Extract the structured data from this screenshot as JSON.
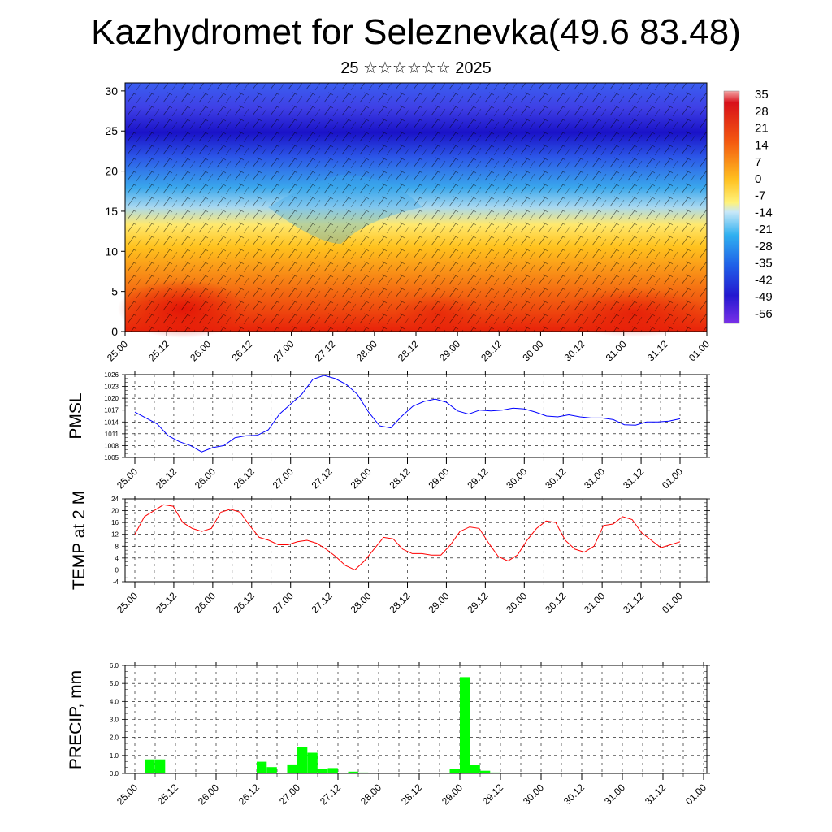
{
  "page": {
    "title": "Kazhydromet for Seleznevka(49.6 83.48)",
    "subtitle": "25 ☆☆☆☆☆☆ 2025"
  },
  "chart_data": [
    {
      "type": "heatmap",
      "name": "temperature-cross-section",
      "x_tick_labels": [
        "25.00",
        "25.12",
        "26.00",
        "26.12",
        "27.00",
        "27.12",
        "28.00",
        "28.12",
        "29.00",
        "29.12",
        "30.00",
        "30.12",
        "31.00",
        "31.12",
        "01.00"
      ],
      "y_tick_labels": [
        "0",
        "5",
        "10",
        "15",
        "20",
        "25",
        "30"
      ],
      "ylim": [
        0,
        31
      ],
      "colorbar_labels": [
        "35",
        "28",
        "21",
        "14",
        "7",
        "0",
        "-7",
        "-14",
        "-21",
        "-28",
        "-35",
        "-42",
        "-49",
        "-56"
      ],
      "colors": {
        "warm": "#e8200a",
        "mid": "#ffd21e",
        "cold": "#1a12c8"
      },
      "overlay": "wind barbs"
    },
    {
      "type": "line",
      "ylabel": "PMSL",
      "ylim": [
        1005,
        1026
      ],
      "y_tick_labels": [
        "1005",
        "1008",
        "1011",
        "1014",
        "1017",
        "1020",
        "1023",
        "1026"
      ],
      "x_tick_labels": [
        "25.00",
        "25.12",
        "26.00",
        "26.12",
        "27.00",
        "27.12",
        "28.00",
        "28.12",
        "29.00",
        "29.12",
        "30.00",
        "30.12",
        "31.00",
        "31.12",
        "01.00"
      ],
      "series": [
        {
          "color": "#0000ff",
          "values": [
            1016.5,
            1015,
            1013.5,
            1010.5,
            1009,
            1008,
            1006.4,
            1007.5,
            1008,
            1010,
            1010.5,
            1010.6,
            1012,
            1016,
            1018.5,
            1021,
            1024.8,
            1025.8,
            1025,
            1023.5,
            1021,
            1016.5,
            1013,
            1012.5,
            1015.5,
            1018,
            1019.2,
            1019.8,
            1019,
            1016.8,
            1016,
            1017,
            1016.8,
            1017,
            1017.5,
            1017.3,
            1016.5,
            1015.5,
            1015.3,
            1015.8,
            1015.3,
            1015,
            1015,
            1014.6,
            1013.3,
            1013.2,
            1014,
            1014,
            1014.2,
            1014.8
          ]
        }
      ]
    },
    {
      "type": "line",
      "ylabel": "TEMP at 2 M",
      "ylim": [
        -4,
        24
      ],
      "y_tick_labels": [
        "-4",
        "0",
        "4",
        "8",
        "12",
        "16",
        "20",
        "24"
      ],
      "x_tick_labels": [
        "25.00",
        "25.12",
        "26.00",
        "26.12",
        "27.00",
        "27.12",
        "28.00",
        "28.12",
        "29.00",
        "29.12",
        "30.00",
        "30.12",
        "31.00",
        "31.12",
        "01.00"
      ],
      "series": [
        {
          "color": "#ff0000",
          "values": [
            12,
            18,
            20,
            22,
            21.5,
            16,
            14,
            13,
            14,
            19.5,
            20.5,
            19.5,
            15,
            11,
            10,
            8.5,
            8.5,
            9.5,
            10,
            9,
            7,
            4.5,
            1.5,
            0,
            3,
            7,
            11,
            10.5,
            7,
            5.5,
            5.5,
            5,
            5,
            8.5,
            13,
            14.5,
            14,
            9,
            4.5,
            3,
            5,
            10,
            14,
            16.5,
            16,
            10,
            7,
            6,
            8,
            15,
            15.5,
            18,
            17,
            12.5,
            10,
            7.5,
            8.5,
            9.5
          ]
        }
      ]
    },
    {
      "type": "bar",
      "ylabel": "PRECIP, mm",
      "ylim": [
        0,
        6
      ],
      "y_tick_labels": [
        "0.0",
        "1.0",
        "2.0",
        "3.0",
        "4.0",
        "5.0",
        "6.0"
      ],
      "x_tick_labels": [
        "25.00",
        "25.12",
        "26.00",
        "26.12",
        "27.00",
        "27.12",
        "28.00",
        "28.12",
        "29.00",
        "29.12",
        "30.00",
        "30.12",
        "31.00",
        "31.12",
        "01.00"
      ],
      "bar_color": "#00ff00",
      "values": [
        0,
        0.78,
        0.78,
        0,
        0,
        0,
        0,
        0,
        0,
        0,
        0,
        0,
        0.65,
        0.35,
        0,
        0.5,
        1.45,
        1.15,
        0.25,
        0.3,
        0,
        0.1,
        0.05,
        0,
        0,
        0,
        0,
        0,
        0,
        0,
        0,
        0.25,
        5.35,
        0.45,
        0.15,
        0.05,
        0,
        0,
        0,
        0,
        0,
        0,
        0,
        0,
        0,
        0,
        0,
        0,
        0,
        0,
        0,
        0,
        0,
        0,
        0,
        0,
        0
      ]
    }
  ]
}
